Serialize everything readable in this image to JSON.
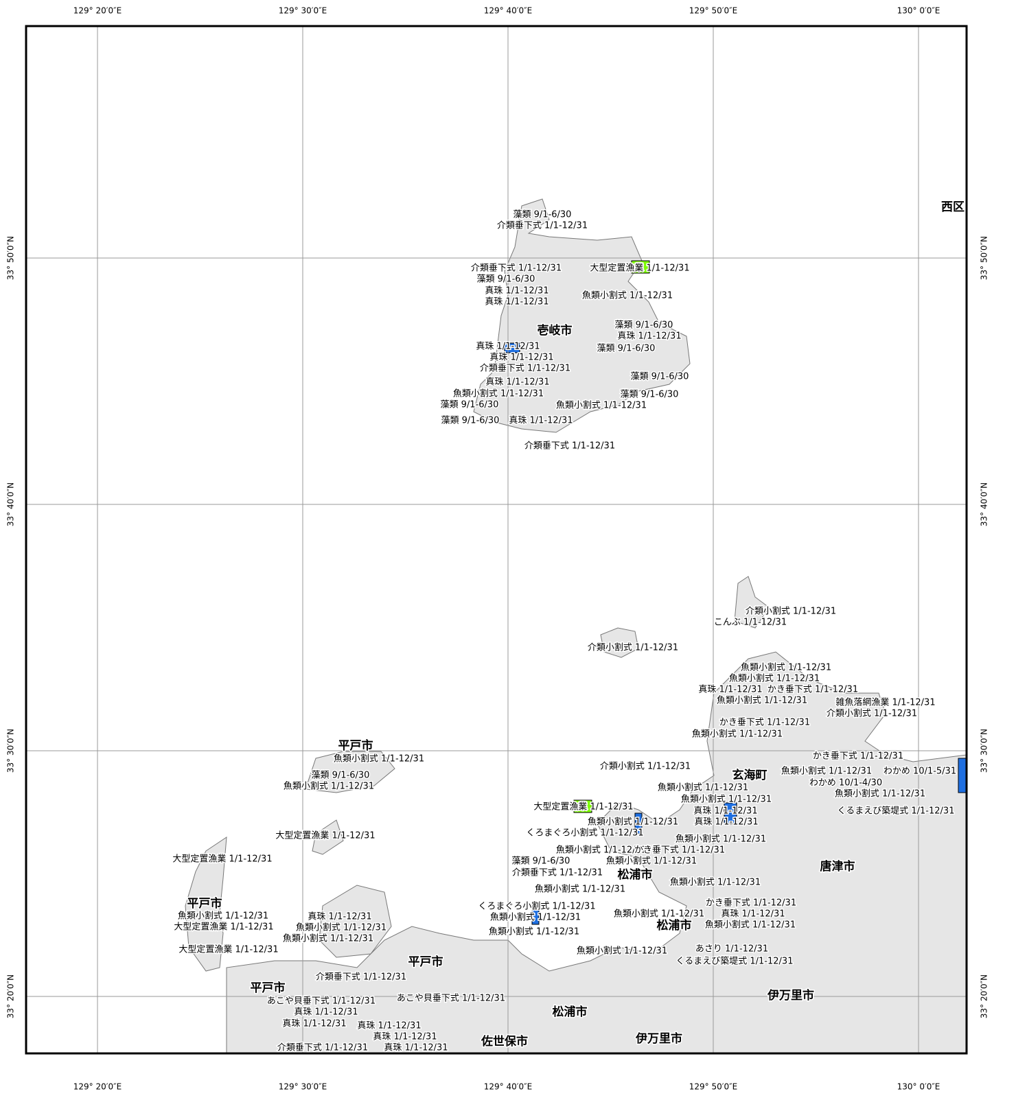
{
  "map": {
    "lon_labels": [
      "129° 20′0″E",
      "129° 30′0″E",
      "129° 40′0″E",
      "129° 50′0″E",
      "130° 0′0″E"
    ],
    "lat_labels": [
      "33° 50′0″N",
      "33° 40′0″N",
      "33° 30′0″N",
      "33° 20′0″N"
    ],
    "place_names": [
      "西区",
      "壱岐市",
      "平戸市",
      "玄海町",
      "唐津市",
      "松浦市",
      "平戸市",
      "松浦市",
      "平戸市",
      "平戸市",
      "伊万里市",
      "松浦市",
      "佐世保市",
      "伊万里市"
    ],
    "facility_labels": [
      "藻類 9/1-6/30",
      "介類垂下式 1/1-12/31",
      "介類垂下式 1/1-12/31",
      "大型定置漁業 1/1-12/31",
      "藻類 9/1-6/30",
      "真珠 1/1-12/31",
      "真珠 1/1-12/31",
      "魚類小割式 1/1-12/31",
      "藻類 9/1-6/30",
      "真珠 1/1-12/31",
      "真珠 1/1-12/31",
      "藻類 9/1-6/30",
      "真珠 1/1-12/31",
      "介類垂下式 1/1-12/31",
      "真珠 1/1-12/31",
      "藻類 9/1-6/30",
      "魚類小割式 1/1-12/31",
      "藻類 9/1-6/30",
      "藻類 9/1-6/30",
      "魚類小割式 1/1-12/31",
      "藻類 9/1-6/30",
      "真珠 1/1-12/31",
      "介類垂下式 1/1-12/31",
      "介類小割式 1/1-12/31",
      "こんぶ 1/1-12/31",
      "介類小割式 1/1-12/31",
      "魚類小割式 1/1-12/31",
      "魚類小割式 1/1-12/31",
      "真珠 1/1-12/31",
      "かき垂下式 1/1-12/31",
      "魚類小割式 1/1-12/31",
      "雑魚落網漁業 1/1-12/31",
      "介類小割式 1/1-12/31",
      "かき垂下式 1/1-12/31",
      "魚類小割式 1/1-12/31",
      "魚類小割式 1/1-12/31",
      "かき垂下式 1/1-12/31",
      "介類小割式 1/1-12/31",
      "藻類 9/1-6/30",
      "魚類小割式 1/1-12/31",
      "わかめ 10/1-5/31",
      "わかめ 10/1-4/30",
      "魚類小割式 1/1-12/31",
      "魚類小割式 1/1-12/31",
      "魚類小割式 1/1-12/31",
      "魚類小割式 1/1-12/31",
      "大型定置漁業 1/1-12/31",
      "真珠 1/1-12/31",
      "くるまえび築堤式 1/1-12/31",
      "魚類小割式 1/1-12/31",
      "真珠 1/1-12/31",
      "大型定置漁業 1/1-12/31",
      "くろまぐろ小割式 1/1-12/31",
      "魚類小割式 1/1-12/31",
      "魚類小割式 1/1-12/31",
      "かき垂下式 1/1-12/31",
      "大型定置漁業 1/1-12/31",
      "藻類 9/1-6/30",
      "魚類小割式 1/1-12/31",
      "介類垂下式 1/1-12/31",
      "魚類小割式 1/1-12/31",
      "魚類小割式 1/1-12/31",
      "かき垂下式 1/1-12/31",
      "くろまぐろ小割式 1/1-12/31",
      "魚類小割式 1/1-12/31",
      "真珠 1/1-12/31",
      "魚類小割式 1/1-12/31",
      "魚類小割式 1/1-12/31",
      "真珠 1/1-12/31",
      "大型定置漁業 1/1-12/31",
      "魚類小割式 1/1-12/31",
      "魚類小割式 1/1-12/31",
      "魚類小割式 1/1-12/31",
      "魚類小割式 1/1-12/31",
      "大型定置漁業 1/1-12/31",
      "魚類小割式 1/1-12/31",
      "あさり 1/1-12/31",
      "くるまえび築堤式 1/1-12/31",
      "介類垂下式 1/1-12/31",
      "あこや貝垂下式 1/1-12/31",
      "あこや貝垂下式 1/1-12/31",
      "真珠 1/1-12/31",
      "真珠 1/1-12/31",
      "真珠 1/1-12/31",
      "真珠 1/1-12/31",
      "介類垂下式 1/1-12/31",
      "真珠 1/1-12/31"
    ]
  }
}
